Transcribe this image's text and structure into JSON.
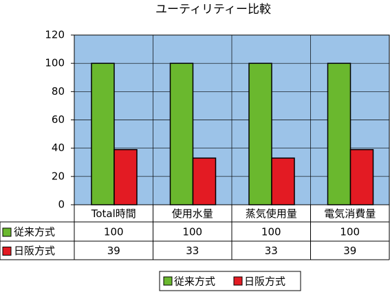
{
  "chart_data": {
    "type": "bar",
    "title": "ユーティリティー比較",
    "categories": [
      "Total時間",
      "使用水量",
      "蒸気使用量",
      "電気消費量"
    ],
    "series": [
      {
        "name": "従来方式",
        "color": "#6ab82e",
        "values": [
          100,
          100,
          100,
          100
        ]
      },
      {
        "name": "日阪方式",
        "color": "#e31b23",
        "values": [
          39,
          33,
          33,
          39
        ]
      }
    ],
    "ylim": [
      0,
      120
    ],
    "yticks": [
      0,
      20,
      40,
      60,
      80,
      100,
      120
    ],
    "grid": true,
    "data_table": true,
    "legend": "bottom",
    "plot_background": "#9cc3e8"
  }
}
